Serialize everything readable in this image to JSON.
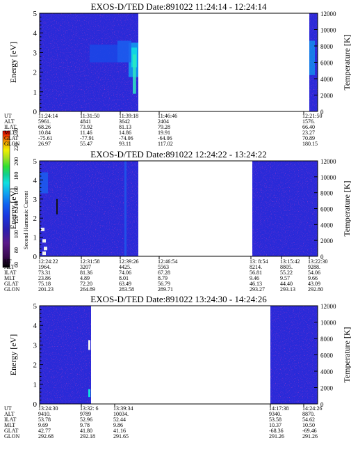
{
  "chart_data": [
    {
      "type": "heatmap",
      "title": "EXOS-D/TED   Date:891022   11:24:14 - 12:24:14",
      "ylabel": "Energy [eV]",
      "y2label": "Temperature [K]",
      "ylim": [
        0,
        5
      ],
      "y2lim": [
        0,
        12000
      ],
      "yticks": [
        "0",
        "1",
        "2",
        "3",
        "4",
        "5"
      ],
      "y2ticks": [
        "0",
        "2000",
        "4000",
        "6000",
        "8000",
        "10000",
        "12000"
      ],
      "data_spans": [
        [
          0.0,
          0.355
        ],
        [
          0.97,
          1.0
        ]
      ],
      "ephemeris_labels": [
        "UT",
        "ALT",
        "ILAT",
        "MLT",
        "GLAT",
        "GLON"
      ],
      "ephemeris": [
        {
          "pos": 0.0,
          "values": [
            "11:24:14",
            "5961.",
            "68.26",
            "10.84",
            "-75.61",
            "26.97"
          ]
        },
        {
          "pos": 0.15,
          "values": [
            "11:31:50",
            "4841",
            "73.92",
            "11.46",
            "-77.91",
            "55.47"
          ]
        },
        {
          "pos": 0.29,
          "values": [
            "11:39:18",
            "3642",
            "81.13",
            "14.86",
            "-74.06",
            "93.11"
          ]
        },
        {
          "pos": 0.43,
          "values": [
            "11:46:46",
            "2404",
            "79.28",
            "19.91",
            "-64.06",
            "117.02"
          ]
        },
        {
          "pos": 0.95,
          "values": [
            "12:21:50",
            "1576.",
            "66.40",
            "23.27",
            "70.89",
            "180.15"
          ]
        }
      ]
    },
    {
      "type": "heatmap",
      "title": "EXOS-D/TED   Date:891022   12:24:22 - 13:24:22",
      "ylabel": "Energy [eV]",
      "y2label": "Temperature [K]",
      "ylim": [
        0,
        5
      ],
      "y2lim": [
        0,
        12000
      ],
      "yticks": [
        "0",
        "1",
        "2",
        "3",
        "4",
        "5"
      ],
      "y2ticks": [
        "0",
        "2000",
        "4000",
        "6000",
        "8000",
        "10000",
        "12000"
      ],
      "data_spans": [
        [
          0.0,
          0.355
        ],
        [
          0.765,
          1.0
        ]
      ],
      "ephemeris_labels": [
        "UT",
        "ALT",
        "ILAT",
        "MLT",
        "GLAT",
        "GLON"
      ],
      "ephemeris": [
        {
          "pos": 0.0,
          "values": [
            "12:24:22",
            "1964.",
            "73.31",
            "23.86",
            "75.18",
            "201.23"
          ]
        },
        {
          "pos": 0.15,
          "values": [
            "12:31:58",
            "3207",
            "81.36",
            "4.89",
            "72.20",
            "264.89"
          ]
        },
        {
          "pos": 0.29,
          "values": [
            "12:39:26",
            "4425.",
            "74.06",
            "8.01",
            "63.49",
            "283.58"
          ]
        },
        {
          "pos": 0.43,
          "values": [
            "12:46:54",
            "5563",
            "67.28",
            "8.79",
            "56.79",
            "289.71"
          ]
        },
        {
          "pos": 0.76,
          "values": [
            "13: 8:54",
            "8214.",
            "56.81",
            "9.46",
            "46.13",
            "293.27"
          ]
        },
        {
          "pos": 0.87,
          "values": [
            "13:15:42",
            "8805.",
            "55.22",
            "9.57",
            "44.40",
            "293.13"
          ]
        },
        {
          "pos": 0.97,
          "values": [
            "13:22:30",
            "9288.",
            "54.06",
            "9.66",
            "43.09",
            "292.80"
          ]
        }
      ]
    },
    {
      "type": "heatmap",
      "title": "EXOS-D/TED   Date:891022   13:24:30 - 14:24:26",
      "ylabel": "Energy [eV]",
      "y2label": "Temperature [K]",
      "ylim": [
        0,
        5
      ],
      "y2lim": [
        0,
        12000
      ],
      "yticks": [
        "0",
        "1",
        "2",
        "3",
        "4",
        "5"
      ],
      "y2ticks": [
        "0",
        "2000",
        "4000",
        "6000",
        "8000",
        "10000",
        "12000"
      ],
      "data_spans": [
        [
          0.0,
          0.185
        ],
        [
          0.83,
          1.0
        ]
      ],
      "ephemeris_labels": [
        "UT",
        "ALT",
        "ILAT",
        "MLT",
        "GLAT",
        "GLON"
      ],
      "ephemeris": [
        {
          "pos": 0.0,
          "values": [
            "13:24:30",
            "9410.",
            "53.78",
            "9.69",
            "42.77",
            "292.68"
          ]
        },
        {
          "pos": 0.15,
          "values": [
            "13:32: 6",
            "9789",
            "52.96",
            "9.78",
            "41.80",
            "292.18"
          ]
        },
        {
          "pos": 0.27,
          "values": [
            "13:39:34",
            "10034.",
            "52.44",
            "9.86",
            "41.16",
            "291.65"
          ]
        },
        {
          "pos": 0.83,
          "values": [
            "14:17:38",
            "9340.",
            "53.58",
            "10.37",
            "-68.36",
            "291.26"
          ]
        },
        {
          "pos": 0.95,
          "values": [
            "14:24:26",
            "8870.",
            "54.62",
            "10.50",
            "-69.46",
            "291.26"
          ]
        }
      ]
    }
  ],
  "colorbar": {
    "label": "Second Harmonic Current",
    "ticks": [
      "60",
      "80",
      "100",
      "120",
      "140",
      "160",
      "180",
      "200",
      "220",
      "240"
    ],
    "colors": [
      "#000000",
      "#3a0a50",
      "#5a1a8a",
      "#2a1fb0",
      "#1a38e0",
      "#1060f0",
      "#10a0f0",
      "#10e0e0",
      "#10d090",
      "#30e030",
      "#a0e020",
      "#f0f000",
      "#f0a000",
      "#f03000",
      "#e00000"
    ]
  }
}
